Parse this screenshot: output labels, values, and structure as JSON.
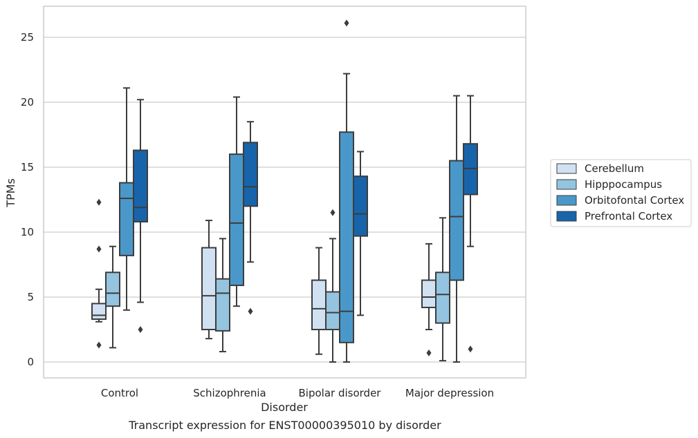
{
  "caption": "Transcript expression for ENST00000395010 by disorder",
  "colors": {
    "Cerebellum": "#d0e1f2",
    "Hipppocampus": "#94c4df",
    "Orbitofontal Cortex": "#4a98c9",
    "Prefrontal Cortex": "#1764ab",
    "box_edge": "#3c3c3c",
    "grid": "#cccccc",
    "frame": "#cccccc"
  },
  "chart_data": {
    "type": "box",
    "xlabel": "Disorder",
    "ylabel": "TPMs",
    "categories": [
      "Control",
      "Schizophrenia",
      "Bipolar disorder",
      "Major depression"
    ],
    "ylim": [
      -1.2,
      27.4
    ],
    "yticks": [
      0,
      5,
      10,
      15,
      20,
      25
    ],
    "grid": true,
    "legend_position": "right",
    "series": [
      {
        "name": "Cerebellum",
        "boxes": [
          {
            "whislo": 3.1,
            "q1": 3.3,
            "med": 3.6,
            "q3": 4.5,
            "whishi": 5.6,
            "fliers": [
              12.3,
              8.7,
              1.3
            ]
          },
          {
            "whislo": 1.8,
            "q1": 2.5,
            "med": 5.1,
            "q3": 8.8,
            "whishi": 10.9,
            "fliers": []
          },
          {
            "whislo": 0.6,
            "q1": 2.5,
            "med": 4.1,
            "q3": 6.3,
            "whishi": 8.8,
            "fliers": []
          },
          {
            "whislo": 2.5,
            "q1": 4.2,
            "med": 5.0,
            "q3": 6.3,
            "whishi": 9.1,
            "fliers": [
              0.7
            ]
          }
        ]
      },
      {
        "name": "Hipppocampus",
        "boxes": [
          {
            "whislo": 1.1,
            "q1": 4.3,
            "med": 5.3,
            "q3": 6.9,
            "whishi": 8.9,
            "fliers": []
          },
          {
            "whislo": 0.8,
            "q1": 2.4,
            "med": 5.3,
            "q3": 6.4,
            "whishi": 9.5,
            "fliers": []
          },
          {
            "whislo": 0.0,
            "q1": 2.5,
            "med": 3.8,
            "q3": 5.4,
            "whishi": 9.5,
            "fliers": [
              11.5
            ]
          },
          {
            "whislo": 0.1,
            "q1": 3.0,
            "med": 5.2,
            "q3": 6.9,
            "whishi": 11.1,
            "fliers": []
          }
        ]
      },
      {
        "name": "Orbitofontal Cortex",
        "boxes": [
          {
            "whislo": 4.0,
            "q1": 8.2,
            "med": 12.6,
            "q3": 13.8,
            "whishi": 21.1,
            "fliers": []
          },
          {
            "whislo": 4.3,
            "q1": 5.9,
            "med": 10.7,
            "q3": 16.0,
            "whishi": 20.4,
            "fliers": []
          },
          {
            "whislo": 0.0,
            "q1": 1.5,
            "med": 3.9,
            "q3": 17.7,
            "whishi": 22.2,
            "fliers": [
              26.1
            ]
          },
          {
            "whislo": 0.0,
            "q1": 6.3,
            "med": 11.2,
            "q3": 15.5,
            "whishi": 20.5,
            "fliers": []
          }
        ]
      },
      {
        "name": "Prefrontal Cortex",
        "boxes": [
          {
            "whislo": 4.6,
            "q1": 10.8,
            "med": 11.9,
            "q3": 16.3,
            "whishi": 20.2,
            "fliers": [
              2.5
            ]
          },
          {
            "whislo": 7.7,
            "q1": 12.0,
            "med": 13.5,
            "q3": 16.9,
            "whishi": 18.5,
            "fliers": [
              3.9
            ]
          },
          {
            "whislo": 3.6,
            "q1": 9.7,
            "med": 11.4,
            "q3": 14.3,
            "whishi": 16.2,
            "fliers": []
          },
          {
            "whislo": 8.9,
            "q1": 12.9,
            "med": 14.9,
            "q3": 16.8,
            "whishi": 20.5,
            "fliers": [
              1.0
            ]
          }
        ]
      }
    ]
  }
}
